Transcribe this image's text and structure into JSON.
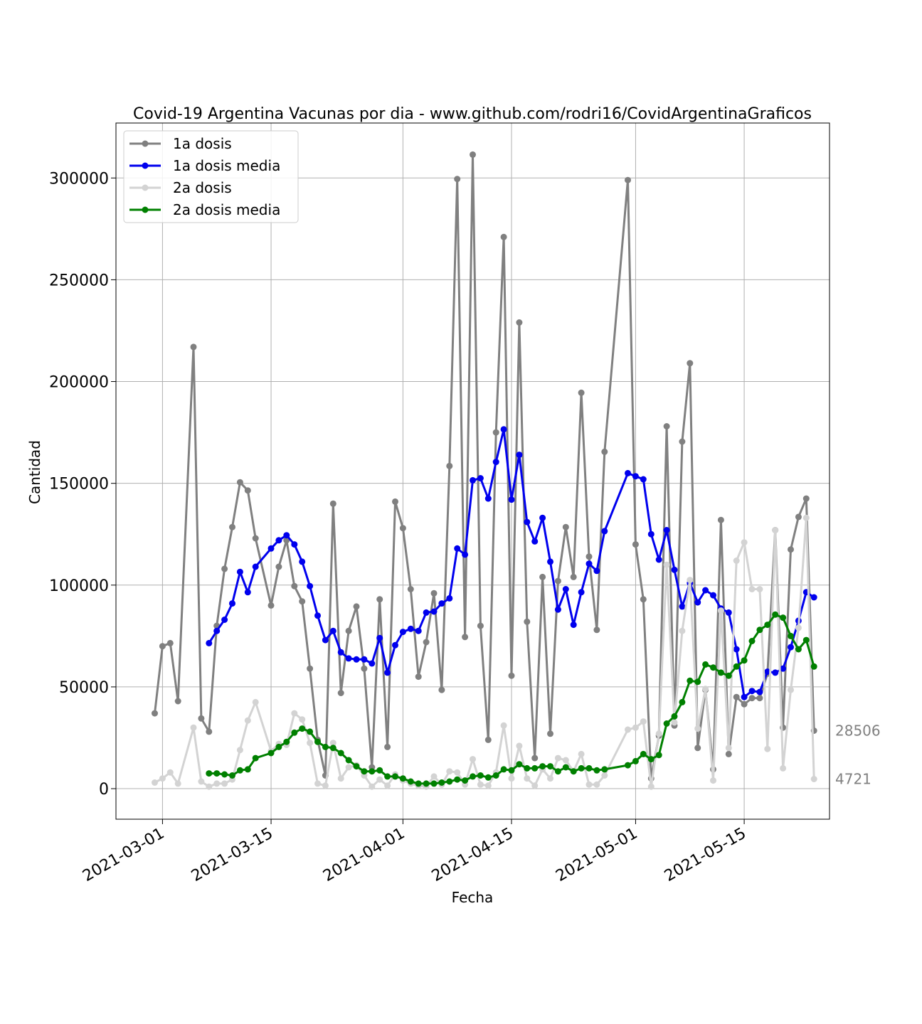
{
  "chart_data": {
    "type": "line",
    "title": "Covid-19 Argentina Vacunas por dia - www.github.com/rodri16/CovidArgentinaGraficos",
    "xlabel": "Fecha",
    "ylabel": "Cantidad",
    "x_start": "2021-02-28",
    "x_range": [
      "2021-02-23",
      "2021-05-26"
    ],
    "ylim": [
      -15000,
      327000
    ],
    "y_ticks": [
      0,
      50000,
      100000,
      150000,
      200000,
      250000,
      300000
    ],
    "x_ticks": [
      "2021-03-01",
      "2021-03-15",
      "2021-04-01",
      "2021-04-15",
      "2021-05-01",
      "2021-05-15"
    ],
    "grid": true,
    "legend": "top-left",
    "series": [
      {
        "name": "1a dosis",
        "color": "#808080",
        "values": [
          37000,
          70000,
          71500,
          43000,
          null,
          217000,
          34500,
          28000,
          80000,
          108000,
          128500,
          150500,
          146500,
          123000,
          null,
          90000,
          109000,
          122000,
          99500,
          92000,
          59000,
          24000,
          6500,
          140000,
          47000,
          77500,
          89500,
          59000,
          10500,
          93000,
          20500,
          141000,
          128000,
          98000,
          55000,
          72000,
          96000,
          48500,
          158500,
          299500,
          74500,
          311500,
          80000,
          24000,
          175000,
          271000,
          55500,
          229000,
          82000,
          15000,
          104000,
          27000,
          102000,
          128500,
          104000,
          194500,
          114000,
          78000,
          165500,
          null,
          null,
          299000,
          120000,
          93000,
          5000,
          26000,
          178000,
          31000,
          170500,
          209000,
          20000,
          48500,
          9500,
          132000,
          17000,
          45000,
          41500,
          44500,
          44500,
          56500,
          127000,
          30000,
          117500,
          133500,
          142500,
          28506
        ]
      },
      {
        "name": "1a dosis media",
        "color": "#0000ee",
        "values": [
          null,
          null,
          null,
          null,
          null,
          null,
          null,
          71500,
          77500,
          83000,
          91000,
          106500,
          96500,
          109000,
          null,
          118000,
          122000,
          124500,
          120000,
          111500,
          99500,
          85000,
          73000,
          77500,
          67000,
          64000,
          63500,
          63500,
          61500,
          74000,
          57000,
          70500,
          77000,
          78500,
          77500,
          86500,
          87000,
          91000,
          93500,
          118000,
          115000,
          151500,
          152500,
          142500,
          160500,
          176500,
          142000,
          164000,
          131000,
          121500,
          133000,
          111500,
          88000,
          98000,
          80500,
          96500,
          110500,
          107000,
          126500,
          null,
          null,
          155000,
          153500,
          152000,
          125000,
          112500,
          127000,
          107500,
          89500,
          101000,
          91500,
          97500,
          95000,
          88500,
          86500,
          68500,
          45000,
          48000,
          47500,
          57500,
          57000,
          59000,
          69500,
          82500,
          96500,
          94000
        ]
      },
      {
        "name": "2a dosis",
        "color": "#d3d3d3",
        "values": [
          3000,
          5000,
          8000,
          2500,
          null,
          30000,
          3500,
          1000,
          2500,
          2500,
          4500,
          19000,
          33500,
          42500,
          null,
          18500,
          22000,
          21500,
          37000,
          34000,
          22500,
          2500,
          1500,
          22500,
          5000,
          10500,
          11500,
          6500,
          1000,
          4500,
          1500,
          7000,
          4000,
          2500,
          1500,
          1000,
          6000,
          2000,
          8500,
          8000,
          2000,
          14500,
          2000,
          1500,
          8000,
          31000,
          5000,
          21000,
          5000,
          1500,
          9500,
          5000,
          15000,
          14000,
          8500,
          17000,
          2000,
          2000,
          6500,
          null,
          null,
          29000,
          30000,
          33000,
          1000,
          27000,
          110000,
          32500,
          77500,
          102500,
          29500,
          49000,
          4000,
          87500,
          20000,
          112000,
          121000,
          98000,
          98000,
          19500,
          127000,
          10000,
          48500,
          79000,
          133000,
          4721
        ]
      },
      {
        "name": "2a dosis media",
        "color": "#008000",
        "values": [
          null,
          null,
          null,
          null,
          null,
          null,
          null,
          7500,
          7500,
          7000,
          6500,
          9000,
          9500,
          15000,
          null,
          17500,
          20500,
          23000,
          27500,
          29500,
          28000,
          23000,
          20500,
          20000,
          17500,
          14000,
          11000,
          8500,
          8500,
          9000,
          6000,
          6000,
          5000,
          3500,
          2500,
          2500,
          2500,
          3000,
          3500,
          4500,
          4000,
          6000,
          6500,
          5500,
          6500,
          9500,
          9000,
          12000,
          10000,
          10000,
          11000,
          11000,
          8500,
          10500,
          8500,
          10000,
          10000,
          9000,
          9500,
          null,
          null,
          11500,
          13500,
          17000,
          14500,
          16500,
          32000,
          35500,
          42500,
          53000,
          52500,
          61000,
          59500,
          57000,
          55500,
          60000,
          63000,
          72500,
          78000,
          80500,
          85500,
          84000,
          75000,
          68500,
          73000,
          60000
        ]
      }
    ],
    "annotations": [
      {
        "text": "28506",
        "value": 28506
      },
      {
        "text": "4721",
        "value": 4721
      }
    ]
  }
}
